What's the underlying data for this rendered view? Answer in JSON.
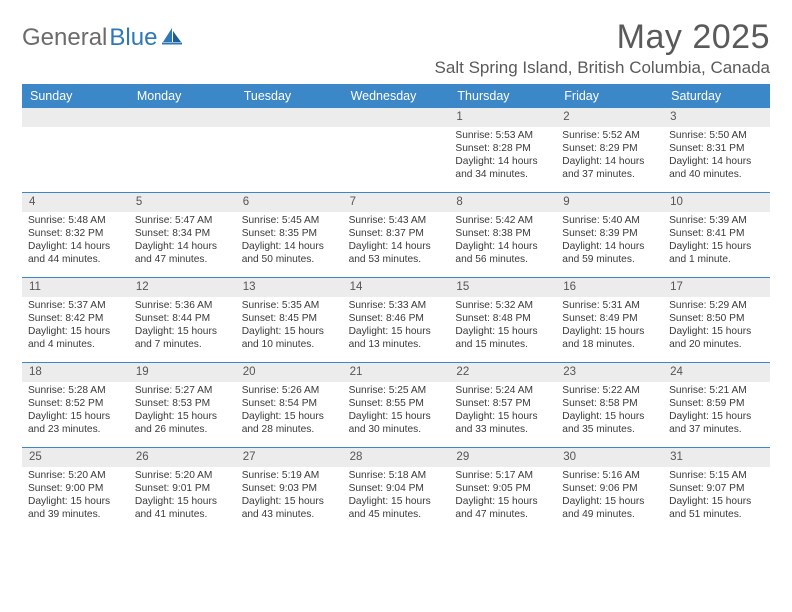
{
  "brand": {
    "part1": "General",
    "part2": "Blue"
  },
  "title": "May 2025",
  "location": "Salt Spring Island, British Columbia, Canada",
  "colors": {
    "header_bar": "#3b87c8",
    "week_divider": "#3b87c8",
    "day_number_bg": "#ececec",
    "text": "#3a3a3a",
    "title_text": "#5a5a5a",
    "logo_gray": "#6b6b6b",
    "logo_blue": "#2f78b7",
    "background": "#ffffff"
  },
  "typography": {
    "title_fontsize_pt": 26,
    "location_fontsize_pt": 13,
    "dow_fontsize_pt": 9.5,
    "cell_fontsize_pt": 7.7,
    "daynum_fontsize_pt": 8.7
  },
  "days_of_week": [
    "Sunday",
    "Monday",
    "Tuesday",
    "Wednesday",
    "Thursday",
    "Friday",
    "Saturday"
  ],
  "weeks": [
    [
      {
        "n": "",
        "sunrise": "",
        "sunset": "",
        "daylight": ""
      },
      {
        "n": "",
        "sunrise": "",
        "sunset": "",
        "daylight": ""
      },
      {
        "n": "",
        "sunrise": "",
        "sunset": "",
        "daylight": ""
      },
      {
        "n": "",
        "sunrise": "",
        "sunset": "",
        "daylight": ""
      },
      {
        "n": "1",
        "sunrise": "Sunrise: 5:53 AM",
        "sunset": "Sunset: 8:28 PM",
        "daylight": "Daylight: 14 hours and 34 minutes."
      },
      {
        "n": "2",
        "sunrise": "Sunrise: 5:52 AM",
        "sunset": "Sunset: 8:29 PM",
        "daylight": "Daylight: 14 hours and 37 minutes."
      },
      {
        "n": "3",
        "sunrise": "Sunrise: 5:50 AM",
        "sunset": "Sunset: 8:31 PM",
        "daylight": "Daylight: 14 hours and 40 minutes."
      }
    ],
    [
      {
        "n": "4",
        "sunrise": "Sunrise: 5:48 AM",
        "sunset": "Sunset: 8:32 PM",
        "daylight": "Daylight: 14 hours and 44 minutes."
      },
      {
        "n": "5",
        "sunrise": "Sunrise: 5:47 AM",
        "sunset": "Sunset: 8:34 PM",
        "daylight": "Daylight: 14 hours and 47 minutes."
      },
      {
        "n": "6",
        "sunrise": "Sunrise: 5:45 AM",
        "sunset": "Sunset: 8:35 PM",
        "daylight": "Daylight: 14 hours and 50 minutes."
      },
      {
        "n": "7",
        "sunrise": "Sunrise: 5:43 AM",
        "sunset": "Sunset: 8:37 PM",
        "daylight": "Daylight: 14 hours and 53 minutes."
      },
      {
        "n": "8",
        "sunrise": "Sunrise: 5:42 AM",
        "sunset": "Sunset: 8:38 PM",
        "daylight": "Daylight: 14 hours and 56 minutes."
      },
      {
        "n": "9",
        "sunrise": "Sunrise: 5:40 AM",
        "sunset": "Sunset: 8:39 PM",
        "daylight": "Daylight: 14 hours and 59 minutes."
      },
      {
        "n": "10",
        "sunrise": "Sunrise: 5:39 AM",
        "sunset": "Sunset: 8:41 PM",
        "daylight": "Daylight: 15 hours and 1 minute."
      }
    ],
    [
      {
        "n": "11",
        "sunrise": "Sunrise: 5:37 AM",
        "sunset": "Sunset: 8:42 PM",
        "daylight": "Daylight: 15 hours and 4 minutes."
      },
      {
        "n": "12",
        "sunrise": "Sunrise: 5:36 AM",
        "sunset": "Sunset: 8:44 PM",
        "daylight": "Daylight: 15 hours and 7 minutes."
      },
      {
        "n": "13",
        "sunrise": "Sunrise: 5:35 AM",
        "sunset": "Sunset: 8:45 PM",
        "daylight": "Daylight: 15 hours and 10 minutes."
      },
      {
        "n": "14",
        "sunrise": "Sunrise: 5:33 AM",
        "sunset": "Sunset: 8:46 PM",
        "daylight": "Daylight: 15 hours and 13 minutes."
      },
      {
        "n": "15",
        "sunrise": "Sunrise: 5:32 AM",
        "sunset": "Sunset: 8:48 PM",
        "daylight": "Daylight: 15 hours and 15 minutes."
      },
      {
        "n": "16",
        "sunrise": "Sunrise: 5:31 AM",
        "sunset": "Sunset: 8:49 PM",
        "daylight": "Daylight: 15 hours and 18 minutes."
      },
      {
        "n": "17",
        "sunrise": "Sunrise: 5:29 AM",
        "sunset": "Sunset: 8:50 PM",
        "daylight": "Daylight: 15 hours and 20 minutes."
      }
    ],
    [
      {
        "n": "18",
        "sunrise": "Sunrise: 5:28 AM",
        "sunset": "Sunset: 8:52 PM",
        "daylight": "Daylight: 15 hours and 23 minutes."
      },
      {
        "n": "19",
        "sunrise": "Sunrise: 5:27 AM",
        "sunset": "Sunset: 8:53 PM",
        "daylight": "Daylight: 15 hours and 26 minutes."
      },
      {
        "n": "20",
        "sunrise": "Sunrise: 5:26 AM",
        "sunset": "Sunset: 8:54 PM",
        "daylight": "Daylight: 15 hours and 28 minutes."
      },
      {
        "n": "21",
        "sunrise": "Sunrise: 5:25 AM",
        "sunset": "Sunset: 8:55 PM",
        "daylight": "Daylight: 15 hours and 30 minutes."
      },
      {
        "n": "22",
        "sunrise": "Sunrise: 5:24 AM",
        "sunset": "Sunset: 8:57 PM",
        "daylight": "Daylight: 15 hours and 33 minutes."
      },
      {
        "n": "23",
        "sunrise": "Sunrise: 5:22 AM",
        "sunset": "Sunset: 8:58 PM",
        "daylight": "Daylight: 15 hours and 35 minutes."
      },
      {
        "n": "24",
        "sunrise": "Sunrise: 5:21 AM",
        "sunset": "Sunset: 8:59 PM",
        "daylight": "Daylight: 15 hours and 37 minutes."
      }
    ],
    [
      {
        "n": "25",
        "sunrise": "Sunrise: 5:20 AM",
        "sunset": "Sunset: 9:00 PM",
        "daylight": "Daylight: 15 hours and 39 minutes."
      },
      {
        "n": "26",
        "sunrise": "Sunrise: 5:20 AM",
        "sunset": "Sunset: 9:01 PM",
        "daylight": "Daylight: 15 hours and 41 minutes."
      },
      {
        "n": "27",
        "sunrise": "Sunrise: 5:19 AM",
        "sunset": "Sunset: 9:03 PM",
        "daylight": "Daylight: 15 hours and 43 minutes."
      },
      {
        "n": "28",
        "sunrise": "Sunrise: 5:18 AM",
        "sunset": "Sunset: 9:04 PM",
        "daylight": "Daylight: 15 hours and 45 minutes."
      },
      {
        "n": "29",
        "sunrise": "Sunrise: 5:17 AM",
        "sunset": "Sunset: 9:05 PM",
        "daylight": "Daylight: 15 hours and 47 minutes."
      },
      {
        "n": "30",
        "sunrise": "Sunrise: 5:16 AM",
        "sunset": "Sunset: 9:06 PM",
        "daylight": "Daylight: 15 hours and 49 minutes."
      },
      {
        "n": "31",
        "sunrise": "Sunrise: 5:15 AM",
        "sunset": "Sunset: 9:07 PM",
        "daylight": "Daylight: 15 hours and 51 minutes."
      }
    ]
  ]
}
